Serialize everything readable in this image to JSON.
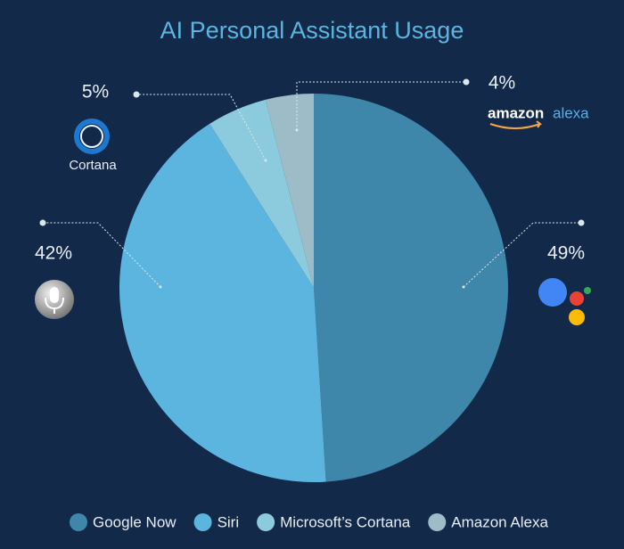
{
  "chart_data": {
    "type": "pie",
    "title": "AI Personal Assistant Usage",
    "categories": [
      "Google Now",
      "Siri",
      "Microsoft’s Cortana",
      "Amazon Alexa"
    ],
    "values": [
      49,
      42,
      5,
      4
    ],
    "value_labels": [
      "49%",
      "42%",
      "5%",
      "4%"
    ],
    "colors": [
      "#3e87aa",
      "#5bb5de",
      "#8ccbdd",
      "#9dbcc7"
    ],
    "annotations": [
      "Cortana",
      "amazon",
      "alexa"
    ]
  }
}
